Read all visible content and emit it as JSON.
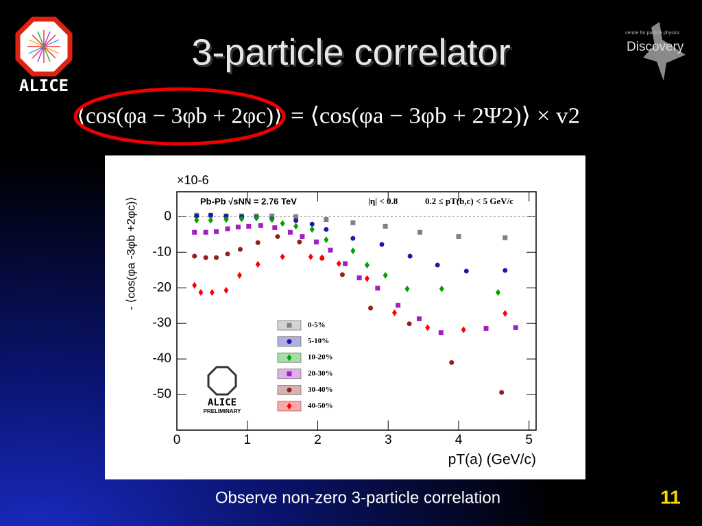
{
  "slide": {
    "title": "3-particle correlator",
    "formula_left": "⟨cos(φa − 3φb + 2φc)⟩",
    "formula_right": "= ⟨cos(φa − 3φb + 2Ψ2)⟩ × v2",
    "caption": "Observe non-zero 3-particle correlation",
    "page_number": "11",
    "logo_left": "ALICE",
    "logo_right": "Discovery",
    "logo_right_small": "centre for particle physics"
  },
  "chart_data": {
    "type": "scatter",
    "y_label": "- ⟨cos(φa -3φb +2φc)⟩",
    "x_label": "pT(a) (GeV/c)",
    "multiplier": "×10-6",
    "annotation_system": "Pb-Pb √sNN = 2.76 TeV",
    "annotation_eta": "|η| < 0.8",
    "annotation_pt": "0.2 ≤ pT(b,c) < 5 GeV/c",
    "logo_text": "ALICE",
    "logo_sub": "PRELIMINARY",
    "xlim": [
      0,
      5.1
    ],
    "ylim": [
      -60,
      7
    ],
    "xticks": [
      0,
      1,
      2,
      3,
      4,
      5
    ],
    "yticks": [
      -50,
      -40,
      -30,
      -20,
      -10,
      0
    ],
    "zero_line": true,
    "series": [
      {
        "name": "0-5%",
        "color": "#808080",
        "marker": "square",
        "x": [
          0.28,
          0.48,
          0.7,
          0.92,
          1.13,
          1.35,
          1.69,
          2.12,
          2.5,
          2.96,
          3.45,
          4.0,
          4.66
        ],
        "values": [
          0.4,
          0.4,
          0.2,
          0.2,
          0.2,
          0.2,
          0,
          -0.8,
          -1.7,
          -2.7,
          -4.4,
          -5.6,
          -5.9
        ]
      },
      {
        "name": "5-10%",
        "color": "#1a1aa8",
        "marker": "circle",
        "x": [
          0.28,
          0.48,
          0.7,
          0.92,
          1.13,
          1.35,
          1.69,
          1.92,
          2.12,
          2.5,
          2.91,
          3.31,
          3.7,
          4.11,
          4.66
        ],
        "values": [
          0.2,
          0.4,
          0.2,
          0,
          -0.2,
          -0.6,
          -1.1,
          -2.1,
          -3.6,
          -6.1,
          -7.8,
          -11.1,
          -13.6,
          -15.3,
          -15.1
        ]
      },
      {
        "name": "10-20%",
        "color": "#00a000",
        "marker": "diamond",
        "x": [
          0.28,
          0.48,
          0.7,
          0.92,
          1.13,
          1.35,
          1.5,
          1.69,
          1.92,
          2.12,
          2.5,
          2.7,
          2.96,
          3.27,
          3.76,
          4.56
        ],
        "values": [
          -1.0,
          -1.0,
          -0.8,
          -0.6,
          -0.4,
          -0.8,
          -1.9,
          -2.7,
          -3.6,
          -6.5,
          -9.6,
          -13.6,
          -16.5,
          -20.3,
          -20.3,
          -21.3
        ]
      },
      {
        "name": "20-30%",
        "color": "#a020c0",
        "marker": "square",
        "x": [
          0.25,
          0.41,
          0.56,
          0.72,
          0.87,
          1.02,
          1.19,
          1.39,
          1.61,
          1.78,
          1.98,
          2.18,
          2.39,
          2.59,
          2.85,
          3.14,
          3.44,
          3.75,
          4.39,
          4.81
        ],
        "values": [
          -4.4,
          -4.4,
          -4.2,
          -3.4,
          -2.9,
          -2.7,
          -2.5,
          -3.1,
          -4.4,
          -5.6,
          -7.1,
          -9.4,
          -13.2,
          -17.2,
          -20.1,
          -24.9,
          -28.7,
          -32.6,
          -31.4,
          -31.2
        ]
      },
      {
        "name": "30-40%",
        "color": "#902020",
        "marker": "circle",
        "x": [
          0.25,
          0.41,
          0.56,
          0.72,
          0.9,
          1.15,
          1.43,
          1.74,
          2.06,
          2.35,
          2.75,
          3.3,
          3.9,
          4.61
        ],
        "values": [
          -11.1,
          -11.5,
          -11.5,
          -10.5,
          -9.2,
          -7.3,
          -5.6,
          -7.1,
          -11.7,
          -16.3,
          -25.7,
          -30.1,
          -41.0,
          -49.4
        ]
      },
      {
        "name": "40-50%",
        "color": "#ff0000",
        "marker": "diamond",
        "x": [
          0.25,
          0.34,
          0.5,
          0.7,
          0.89,
          1.15,
          1.5,
          1.9,
          2.06,
          2.3,
          2.7,
          3.09,
          3.56,
          4.07,
          4.66
        ],
        "values": [
          -19.3,
          -21.3,
          -21.3,
          -20.7,
          -16.5,
          -13.4,
          -11.3,
          -11.3,
          -11.5,
          -13.2,
          -17.4,
          -27.0,
          -31.2,
          -31.8,
          -27.2
        ]
      }
    ]
  }
}
